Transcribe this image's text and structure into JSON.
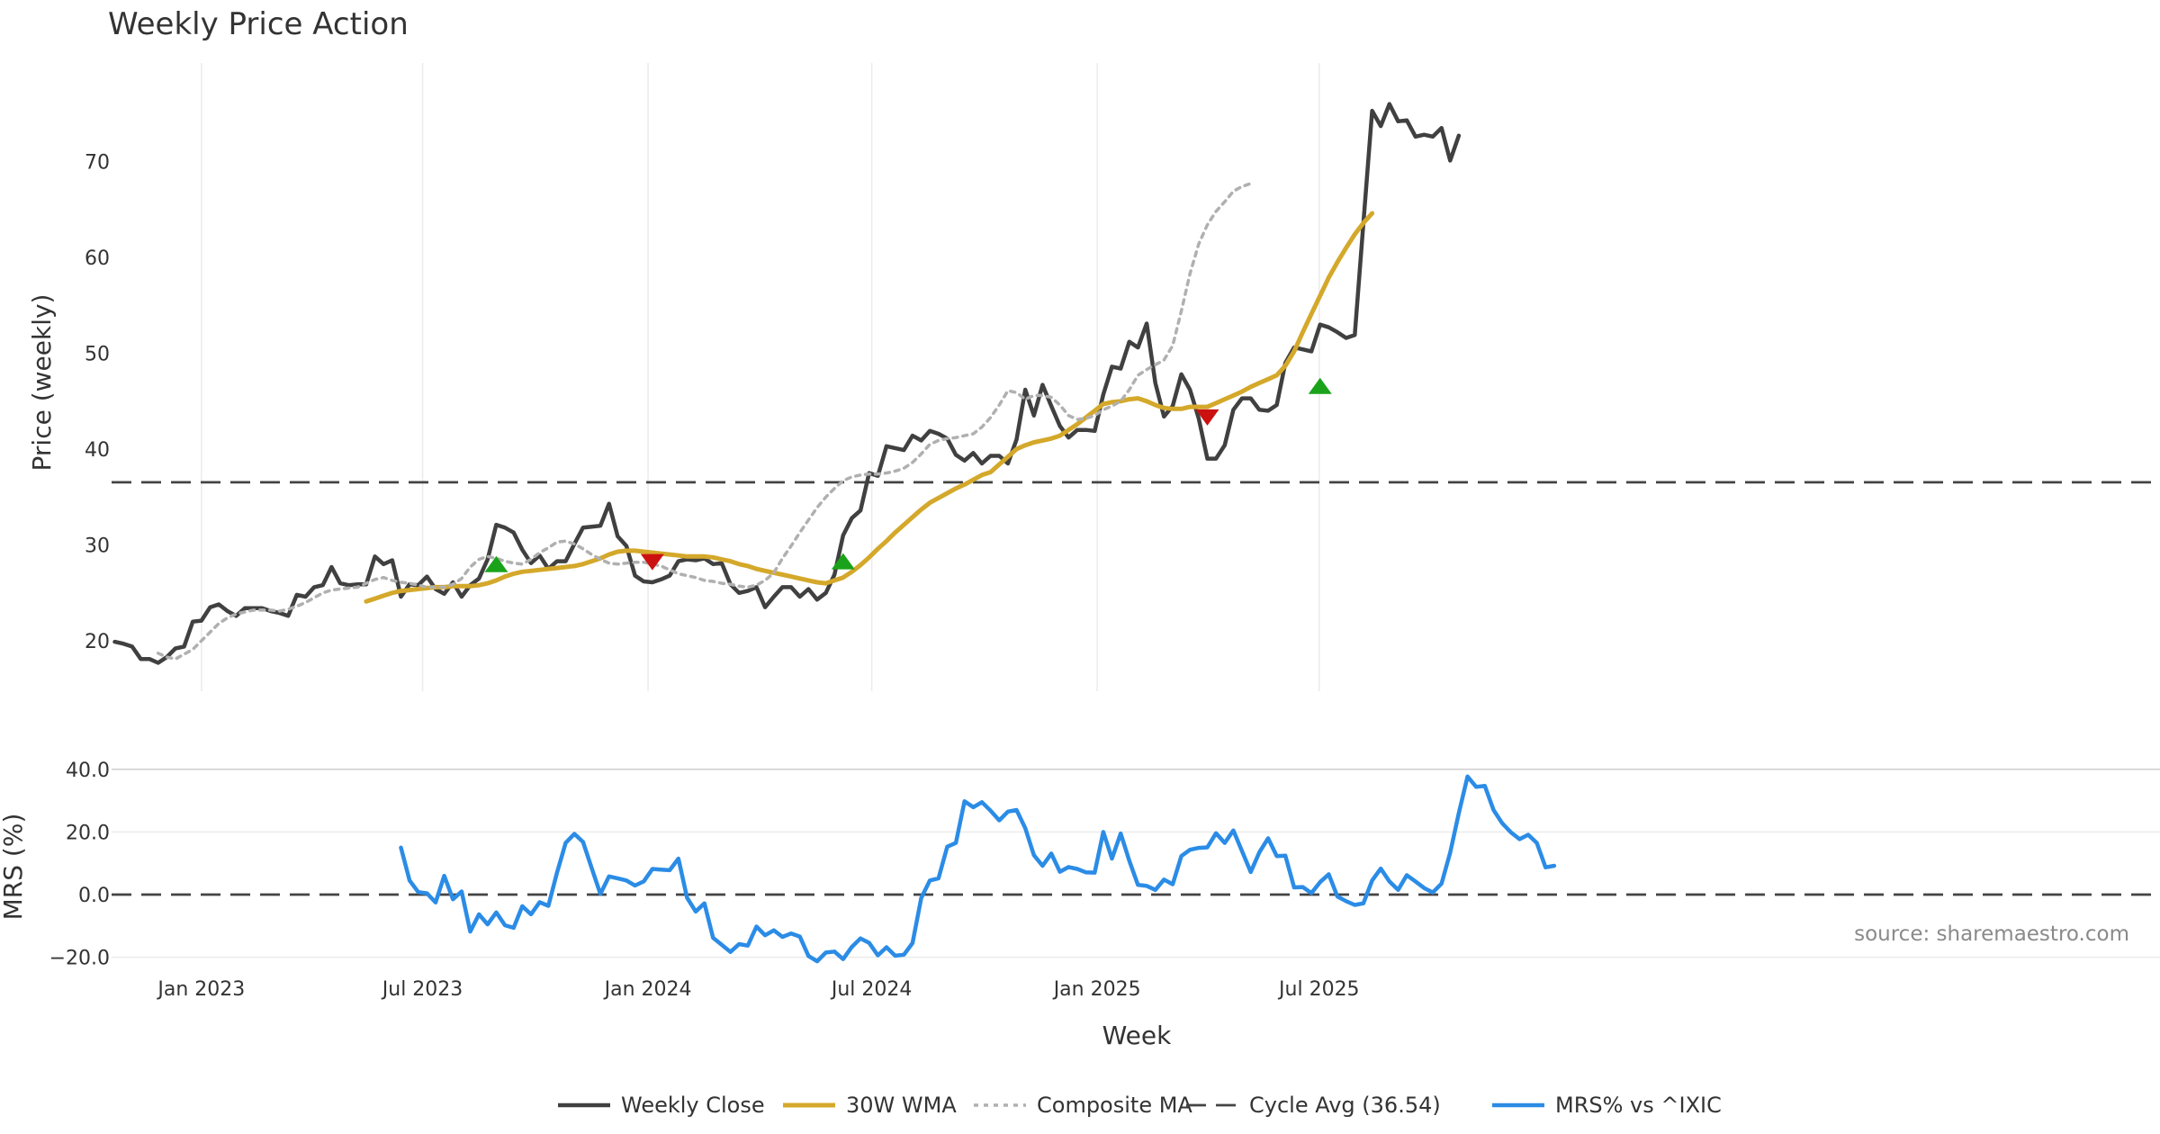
{
  "chart_data": {
    "type": "line",
    "title": "Weekly Price Action",
    "source": "source: sharemaestro.com",
    "x_tick_labels": [
      "Jan 2023",
      "Jul 2023",
      "Jan 2024",
      "Jul 2024",
      "Jan 2025",
      "Jul 2025"
    ],
    "xlabel": "Week",
    "panels": [
      {
        "name": "price",
        "ylabel": "Price (weekly)",
        "ylim": [
          15,
          82
        ],
        "yticks": [
          20,
          30,
          40,
          50,
          60,
          70
        ],
        "ytick_labels": [
          "20",
          "30",
          "40",
          "50",
          "60",
          "70"
        ],
        "grid": true
      },
      {
        "name": "mrs",
        "ylabel": "MRS (%)",
        "ylim": [
          -22,
          42
        ],
        "yticks": [
          -20,
          0,
          20,
          40
        ],
        "ytick_labels": [
          "−20.0",
          "0.0",
          "20.0",
          "40.0"
        ],
        "grid": true
      }
    ],
    "series": [
      {
        "name": "Weekly Close",
        "panel": "price",
        "color": "#404040",
        "style": "solid",
        "values": [
          19.9,
          19.7,
          19.4,
          18.1,
          18.1,
          17.7,
          18.3,
          19.2,
          19.4,
          22.0,
          22.1,
          23.5,
          23.8,
          23.1,
          22.6,
          23.4,
          23.4,
          23.4,
          23.1,
          22.9,
          22.6,
          24.8,
          24.6,
          25.6,
          25.8,
          27.7,
          26.0,
          25.8,
          25.9,
          25.9,
          28.8,
          28.0,
          28.4,
          24.6,
          25.9,
          25.8,
          26.7,
          25.4,
          24.9,
          26.1,
          24.6,
          25.8,
          26.5,
          28.5,
          32.1,
          31.8,
          31.3,
          29.5,
          28.1,
          28.9,
          27.5,
          28.3,
          28.3,
          30.1,
          31.8,
          31.9,
          32.0,
          34.3,
          30.9,
          29.9,
          26.8,
          26.2,
          26.1,
          26.4,
          26.8,
          28.3,
          28.5,
          28.4,
          28.6,
          28.0,
          28.1,
          25.9,
          25.0,
          25.2,
          25.6,
          23.5,
          24.6,
          25.6,
          25.6,
          24.6,
          25.4,
          24.3,
          25.0,
          26.9,
          31.0,
          32.8,
          33.6,
          37.5,
          37.2,
          40.3,
          40.1,
          39.9,
          41.4,
          40.9,
          41.9,
          41.6,
          41.1,
          39.4,
          38.8,
          39.6,
          38.5,
          39.3,
          39.3,
          38.5,
          41.0,
          46.2,
          43.5,
          46.7,
          44.5,
          42.4,
          41.2,
          42.0,
          42.0,
          41.9,
          45.7,
          48.6,
          48.4,
          51.2,
          50.6,
          53.1,
          46.9,
          43.4,
          44.5,
          47.8,
          46.2,
          43.2,
          39.0,
          39.0,
          40.4,
          44.1,
          45.3,
          45.3,
          44.1,
          44.0,
          44.6,
          49.0,
          50.6,
          50.4,
          50.2,
          53.0,
          52.7,
          52.2,
          51.6,
          51.9,
          63.6,
          75.3,
          73.7,
          76.0,
          74.2,
          74.3,
          72.6,
          72.8,
          72.6,
          73.5,
          70.1,
          72.7
        ]
      },
      {
        "name": "30W WMA",
        "panel": "price",
        "color": "#d4a82a",
        "style": "solid",
        "start_index": 29,
        "values": [
          24.1,
          24.4,
          24.7,
          25.0,
          25.2,
          25.3,
          25.4,
          25.5,
          25.6,
          25.6,
          25.7,
          25.7,
          25.7,
          25.8,
          26.0,
          26.3,
          26.7,
          27.0,
          27.2,
          27.3,
          27.4,
          27.5,
          27.6,
          27.7,
          27.8,
          28.0,
          28.3,
          28.6,
          29.0,
          29.3,
          29.4,
          29.4,
          29.3,
          29.2,
          29.1,
          29.0,
          28.9,
          28.8,
          28.8,
          28.8,
          28.7,
          28.5,
          28.3,
          28.0,
          27.8,
          27.5,
          27.3,
          27.1,
          26.9,
          26.7,
          26.5,
          26.3,
          26.1,
          26.0,
          26.3,
          26.6,
          27.2,
          27.9,
          28.7,
          29.6,
          30.4,
          31.3,
          32.1,
          32.9,
          33.7,
          34.4,
          34.9,
          35.4,
          35.9,
          36.3,
          36.8,
          37.3,
          37.6,
          38.4,
          39.2,
          40.0,
          40.4,
          40.7,
          40.9,
          41.1,
          41.4,
          42.0,
          42.6,
          43.3,
          44.0,
          44.7,
          44.9,
          45.0,
          45.2,
          45.3,
          45.0,
          44.6,
          44.3,
          44.2,
          44.2,
          44.4,
          44.4,
          44.4,
          44.8,
          45.2,
          45.6,
          46.0,
          46.5,
          46.9,
          47.3,
          47.7,
          48.7,
          50.2,
          52.2,
          54.1,
          56.0,
          57.9,
          59.5,
          61.0,
          62.4,
          63.6,
          64.6
        ]
      },
      {
        "name": "Composite MA",
        "panel": "price",
        "color": "#b0b0b0",
        "style": "dotted",
        "start_index": 5,
        "values": [
          18.7,
          18.3,
          18.1,
          18.6,
          19.1,
          20.0,
          20.9,
          21.8,
          22.4,
          22.8,
          23.0,
          23.2,
          23.2,
          23.2,
          23.1,
          23.3,
          23.6,
          24.0,
          24.5,
          25.0,
          25.3,
          25.4,
          25.5,
          25.6,
          26.0,
          26.4,
          26.6,
          26.3,
          26.1,
          26.0,
          25.8,
          25.6,
          25.6,
          25.6,
          25.9,
          26.5,
          27.7,
          28.5,
          28.8,
          28.6,
          28.3,
          28.1,
          28.0,
          28.5,
          29.2,
          29.7,
          30.3,
          30.4,
          30.1,
          29.6,
          29.0,
          28.5,
          28.1,
          28.0,
          28.1,
          28.2,
          28.2,
          28.0,
          27.8,
          27.4,
          27.0,
          26.8,
          26.6,
          26.3,
          26.2,
          26.0,
          25.9,
          25.7,
          25.6,
          25.8,
          26.3,
          27.1,
          28.6,
          29.9,
          31.3,
          32.6,
          33.9,
          35.0,
          35.9,
          36.7,
          37.1,
          37.3,
          37.4,
          37.4,
          37.5,
          37.7,
          38.0,
          38.6,
          39.5,
          40.5,
          40.9,
          41.1,
          41.2,
          41.4,
          41.6,
          42.3,
          43.3,
          44.6,
          46.1,
          45.9,
          45.2,
          45.6,
          45.6,
          45.4,
          44.6,
          43.5,
          43.1,
          43.2,
          43.5,
          44.1,
          44.5,
          45.0,
          46.2,
          47.7,
          48.3,
          48.8,
          49.3,
          50.8,
          54.4,
          58.3,
          61.4,
          63.4,
          64.8,
          65.8,
          66.9,
          67.4,
          67.7
        ]
      },
      {
        "name": "Cycle Avg (36.54)",
        "panel": "price",
        "color": "#444444",
        "style": "dashed",
        "value": 36.54
      },
      {
        "name": "MRS% vs ^IXIC",
        "panel": "mrs",
        "color": "#2b8ce6",
        "style": "solid",
        "start_index": 33,
        "values": [
          15.0,
          4.5,
          0.8,
          0.4,
          -2.5,
          6.0,
          -1.5,
          1.0,
          -11.8,
          -6.3,
          -9.5,
          -5.7,
          -9.8,
          -10.6,
          -3.7,
          -6.3,
          -2.4,
          -3.6,
          7.0,
          16.5,
          19.4,
          16.8,
          8.5,
          0.2,
          5.8,
          5.2,
          4.5,
          2.9,
          4.2,
          8.2,
          8.0,
          7.8,
          11.5,
          -1.0,
          -5.4,
          -2.8,
          -13.8,
          -16.0,
          -18.3,
          -15.8,
          -16.3,
          -10.2,
          -13.0,
          -11.4,
          -13.5,
          -12.4,
          -13.4,
          -19.6,
          -21.3,
          -18.5,
          -18.2,
          -20.6,
          -16.7,
          -14.0,
          -15.4,
          -19.4,
          -16.8,
          -19.5,
          -19.2,
          -15.5,
          -1.1,
          4.5,
          5.2,
          15.3,
          16.5,
          29.8,
          27.9,
          29.5,
          26.8,
          23.7,
          26.5,
          27.0,
          21.2,
          12.6,
          9.2,
          13.1,
          7.3,
          8.8,
          8.2,
          7.1,
          7.0,
          20.0,
          11.5,
          19.5,
          10.8,
          3.1,
          2.8,
          1.5,
          4.8,
          3.3,
          12.3,
          14.3,
          14.9,
          15.1,
          19.6,
          16.5,
          20.5,
          13.9,
          7.2,
          13.5,
          18.0,
          12.3,
          12.4,
          2.3,
          2.4,
          0.5,
          4.0,
          6.5,
          -0.6,
          -2.1,
          -3.3,
          -2.8,
          4.5,
          8.3,
          4.2,
          1.5,
          6.2,
          4.2,
          2.1,
          0.7,
          3.5,
          13.4,
          26.0,
          37.7,
          34.4,
          34.7,
          27.0,
          22.8,
          19.9,
          17.7,
          19.1,
          16.5,
          8.7,
          9.2
        ]
      },
      {
        "name": "MRS zero line",
        "panel": "mrs",
        "color": "#444444",
        "style": "dashed",
        "value": 0,
        "in_legend": false
      }
    ],
    "signals": [
      {
        "type": "buy",
        "color": "#1aa31a",
        "index": 44,
        "price": 28.0
      },
      {
        "type": "sell",
        "color": "#cc1111",
        "index": 62,
        "price": 28.2
      },
      {
        "type": "buy",
        "color": "#1aa31a",
        "index": 84,
        "price": 28.3
      },
      {
        "type": "sell",
        "color": "#cc1111",
        "index": 126,
        "price": 43.3
      },
      {
        "type": "buy",
        "color": "#1aa31a",
        "index": 139,
        "price": 46.6
      }
    ],
    "legend_position": "bottom-center",
    "legend": [
      "Weekly Close",
      "30W WMA",
      "Composite MA",
      "Cycle Avg (36.54)",
      "MRS% vs ^IXIC"
    ]
  }
}
